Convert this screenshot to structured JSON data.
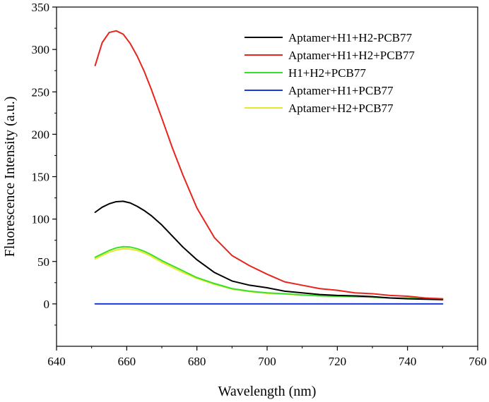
{
  "chart_data": {
    "type": "line",
    "title": "",
    "xlabel": "Wavelength (nm)",
    "ylabel": "Fluorescence Intensity (a.u.)",
    "xlim": [
      640,
      760
    ],
    "ylim": [
      -50,
      350
    ],
    "x_ticks": [
      640,
      660,
      680,
      700,
      720,
      740,
      760
    ],
    "y_ticks": [
      0,
      50,
      100,
      150,
      200,
      250,
      300,
      350
    ],
    "grid": false,
    "legend_position": "top-right",
    "x": [
      651,
      653,
      655,
      657,
      659,
      661,
      663,
      665,
      667,
      670,
      673,
      676,
      680,
      685,
      690,
      695,
      700,
      705,
      710,
      715,
      720,
      725,
      730,
      735,
      740,
      745,
      750
    ],
    "series": [
      {
        "name": "Aptamer+H1+H2-PCB77",
        "color": "#000000",
        "values": [
          108,
          114,
          118,
          120.5,
          121,
          119,
          115,
          110,
          104,
          93,
          80,
          67,
          52,
          37,
          27,
          22,
          19,
          15,
          13,
          11,
          10,
          9.5,
          8.5,
          7,
          6,
          5.5,
          5
        ]
      },
      {
        "name": "Aptamer+H1+H2+PCB77",
        "color": "#e8241c",
        "values": [
          281,
          308,
          320,
          322,
          318,
          307,
          292,
          274,
          253,
          219,
          184,
          152,
          113,
          78,
          57,
          45,
          35,
          26,
          22,
          18,
          16,
          13,
          12,
          10,
          9,
          7,
          6
        ]
      },
      {
        "name": "H1+H2+PCB77",
        "color": "#39e02a",
        "values": [
          55,
          59,
          63,
          66,
          67.5,
          67,
          65,
          62,
          58,
          51,
          45,
          39,
          31,
          24,
          18,
          15,
          13,
          12,
          10.5,
          9.5,
          9,
          8.5,
          8,
          7,
          7,
          6.5,
          6
        ]
      },
      {
        "name": "Aptamer+H1+PCB77",
        "color": "#1a39d6",
        "values": [
          0,
          0,
          0,
          0,
          0,
          0,
          0,
          0,
          0,
          0,
          0,
          0,
          0,
          0,
          0,
          0,
          0,
          0,
          0,
          0,
          0,
          0,
          0,
          0,
          0,
          0,
          0
        ]
      },
      {
        "name": "Aptamer+H2+PCB77",
        "color": "#e8e82a",
        "values": [
          53,
          57,
          61,
          63.5,
          65,
          64.5,
          63,
          60,
          56,
          49,
          43,
          37,
          30,
          23,
          17.5,
          14.5,
          12.5,
          11.5,
          10.5,
          9.5,
          9,
          8.5,
          8,
          7,
          6.5,
          6,
          5.5
        ]
      }
    ]
  }
}
